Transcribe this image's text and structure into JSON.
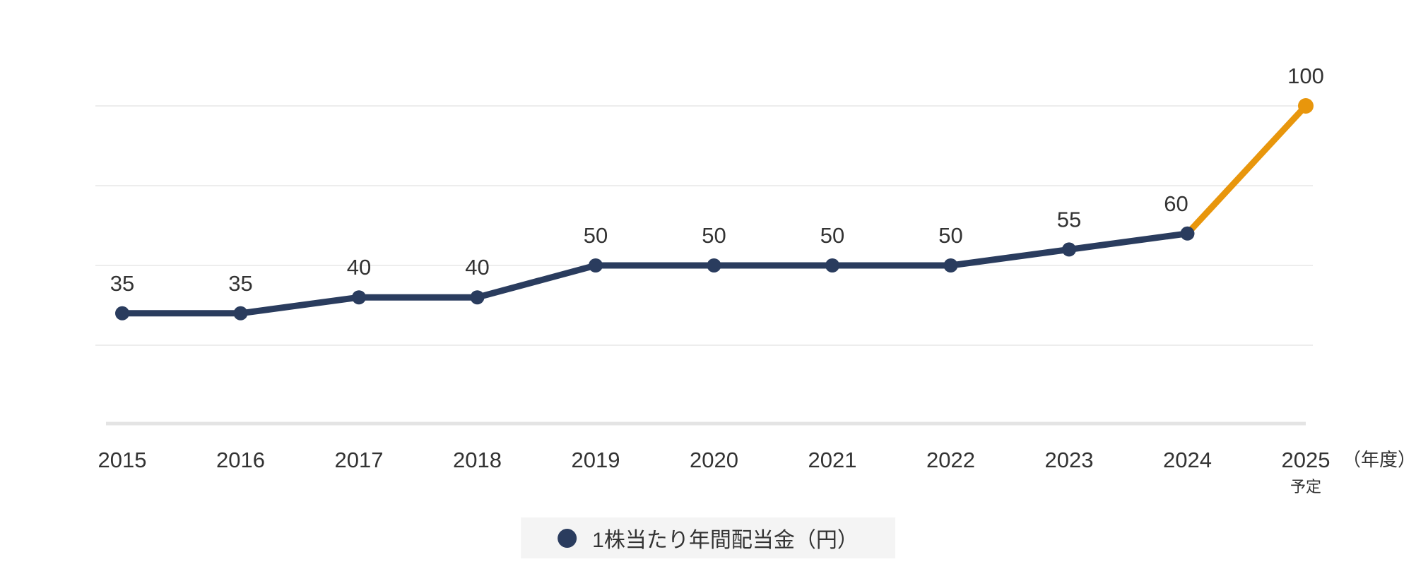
{
  "chart_data": {
    "type": "line",
    "title": "",
    "xlabel": "（年度）",
    "ylabel": "",
    "categories": [
      "2015",
      "2016",
      "2017",
      "2018",
      "2019",
      "2020",
      "2021",
      "2022",
      "2023",
      "2024",
      "2025"
    ],
    "category_note": {
      "index": 10,
      "label": "予定"
    },
    "series": [
      {
        "name": "1株当たり年間配当金（円）",
        "values": [
          35,
          35,
          40,
          40,
          50,
          50,
          50,
          50,
          55,
          60,
          100
        ],
        "color": "#2a3c5e",
        "forecast_segment": {
          "from_index": 9,
          "color": "#e8960c"
        }
      }
    ],
    "value_labels": true,
    "label_offsets": {
      "9": -16
    },
    "ylim": [
      0,
      112
    ],
    "gridline_values": [
      25,
      50,
      75,
      100
    ],
    "grid": "horizontal",
    "legend_position": "bottom"
  },
  "legend": {
    "series_label": "1株当たり年間配当金（円）",
    "marker_color": "#2a3c5e"
  },
  "colors": {
    "line": "#2a3c5e",
    "forecast": "#e8960c",
    "text": "#333333",
    "gridline": "#ededed",
    "baseline": "#e4e4e4",
    "legend_bg": "#f4f4f4"
  }
}
